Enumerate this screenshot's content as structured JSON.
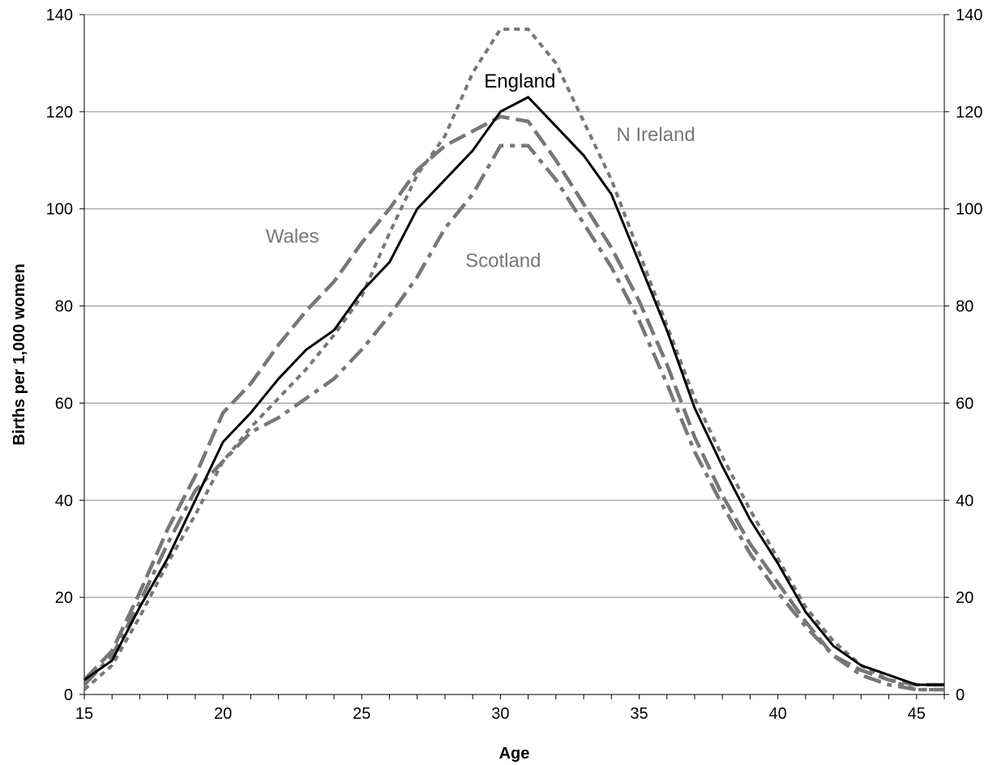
{
  "chart_data": {
    "type": "line",
    "xlabel": "Age",
    "ylabel": "Births per 1,000 women",
    "xlim": [
      15,
      46
    ],
    "ylim": [
      0,
      140
    ],
    "x_ticks": [
      15,
      20,
      25,
      30,
      35,
      40,
      45
    ],
    "y_ticks": [
      0,
      20,
      40,
      60,
      80,
      100,
      120,
      140
    ],
    "grid": "horizontal",
    "secondary_y_axis": true,
    "legend": "none",
    "x": [
      15,
      16,
      17,
      18,
      19,
      20,
      21,
      22,
      23,
      24,
      25,
      26,
      27,
      28,
      29,
      30,
      31,
      32,
      33,
      34,
      35,
      36,
      37,
      38,
      39,
      40,
      41,
      42,
      43,
      44,
      45,
      46
    ],
    "series": [
      {
        "name": "England",
        "color": "#000000",
        "dash": "solid",
        "values": [
          3,
          7,
          18,
          28,
          40,
          52,
          58,
          65,
          71,
          75,
          83,
          89,
          100,
          106,
          112,
          120,
          123,
          117,
          111,
          103,
          89,
          75,
          59,
          47,
          36,
          27,
          17,
          10,
          6,
          4,
          2,
          2
        ]
      },
      {
        "name": "N Ireland",
        "color": "#777777",
        "dash": "short",
        "values": [
          1,
          6,
          16,
          27,
          37,
          48,
          55,
          61,
          67,
          74,
          82,
          95,
          107,
          115,
          128,
          137,
          137,
          130,
          118,
          106,
          91,
          76,
          61,
          49,
          38,
          28,
          18,
          11,
          6,
          3,
          1,
          1
        ]
      },
      {
        "name": "Wales",
        "color": "#777777",
        "dash": "long",
        "values": [
          3,
          9,
          21,
          34,
          45,
          58,
          64,
          72,
          79,
          85,
          93,
          100,
          108,
          113,
          116,
          119,
          118,
          110,
          101,
          92,
          81,
          68,
          53,
          41,
          31,
          23,
          15,
          8,
          5,
          3,
          2,
          2
        ]
      },
      {
        "name": "Scotland",
        "color": "#777777",
        "dash": "longshort",
        "values": [
          2,
          8,
          19,
          31,
          42,
          48,
          54,
          57,
          61,
          65,
          71,
          78,
          86,
          96,
          103,
          113,
          113,
          106,
          97,
          88,
          77,
          64,
          50,
          39,
          29,
          21,
          14,
          8,
          4,
          2,
          1,
          1
        ]
      }
    ],
    "annotations": [
      {
        "text": "England",
        "series": "England",
        "color": "#000000"
      },
      {
        "text": "N Ireland",
        "series": "N Ireland",
        "color": "#777777"
      },
      {
        "text": "Wales",
        "series": "Wales",
        "color": "#777777"
      },
      {
        "text": "Scotland",
        "series": "Scotland",
        "color": "#777777"
      }
    ]
  }
}
